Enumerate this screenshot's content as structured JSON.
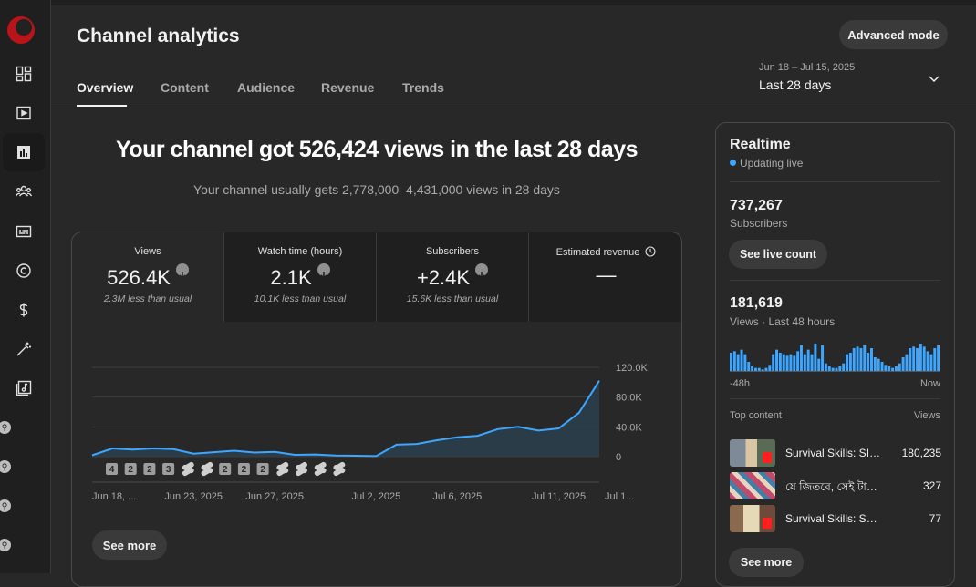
{
  "header": {
    "title": "Channel analytics",
    "advanced_mode": "Advanced mode",
    "tabs": [
      "Overview",
      "Content",
      "Audience",
      "Revenue",
      "Trends"
    ],
    "date_range": "Jun 18 – Jul 15, 2025",
    "date_label": "Last 28 days"
  },
  "sidebar": {
    "items": [
      "dashboard-icon",
      "content-icon",
      "analytics-icon",
      "community-icon",
      "subtitles-icon",
      "copyright-icon",
      "earn-icon",
      "customization-icon",
      "audio-library-icon"
    ]
  },
  "main": {
    "headline": "Your channel got 526,424 views in the last 28 days",
    "subline": "Your channel usually gets 2,778,000–4,431,000 views in 28 days",
    "see_more": "See more"
  },
  "metrics": [
    {
      "label": "Views",
      "value": "526.4K",
      "note": "2.3M less than usual",
      "trend": "down"
    },
    {
      "label": "Watch time (hours)",
      "value": "2.1K",
      "note": "10.1K less than usual",
      "trend": "down"
    },
    {
      "label": "Subscribers",
      "value": "+2.4K",
      "note": "15.6K less than usual",
      "trend": "down"
    },
    {
      "label": "Estimated revenue",
      "value": "—",
      "note": "",
      "trend": ""
    }
  ],
  "chart_data": {
    "type": "area",
    "y_ticks": [
      "120.0K",
      "80.0K",
      "40.0K",
      "0"
    ],
    "ylim": [
      0,
      120000
    ],
    "x_labels": [
      "Jun 18, ...",
      "Jun 23, 2025",
      "Jun 27, 2025",
      "Jul 2, 2025",
      "Jul 6, 2025",
      "Jul 11, 2025",
      "Jul 1..."
    ],
    "x_label_index": [
      0,
      5,
      9,
      14,
      18,
      23,
      26
    ],
    "values": [
      1800,
      11000,
      9500,
      11000,
      10000,
      4000,
      6000,
      8000,
      5500,
      6500,
      2500,
      3000,
      1500,
      1200,
      700,
      16000,
      17000,
      22000,
      26000,
      28000,
      37000,
      40000,
      35000,
      38000,
      59000,
      102000
    ],
    "markers": [
      "4",
      "2",
      "2",
      "3",
      "short",
      "short",
      "2",
      "2",
      "2",
      "short",
      "short",
      "short",
      "short"
    ],
    "color": "#3ea6ff"
  },
  "realtime": {
    "title": "Realtime",
    "live": "Updating live",
    "subscribers_value": "737,267",
    "subscribers_label": "Subscribers",
    "see_live_count": "See live count",
    "views_value": "181,619",
    "views_label": "Views · Last 48 hours",
    "axis_start": "-48h",
    "axis_end": "Now",
    "bars": [
      12,
      13,
      11,
      14,
      11,
      6,
      3,
      2,
      2,
      1,
      2,
      4,
      11,
      14,
      12,
      11,
      10,
      11,
      10,
      13,
      17,
      11,
      14,
      11,
      18,
      8,
      17,
      5,
      3,
      2,
      2,
      3,
      5,
      11,
      12,
      15,
      16,
      15,
      17,
      12,
      15,
      9,
      8,
      6,
      4,
      3,
      2,
      3,
      5,
      9,
      11,
      15,
      16,
      15,
      18,
      16,
      13,
      11,
      15,
      17
    ],
    "top_content_label": "Top content",
    "views_col": "Views",
    "top_content": [
      {
        "title": "Survival Skills: SIM...",
        "views": "180,235"
      },
      {
        "title": "যে জিতবে, সেই টাকা পা...",
        "views": "327"
      },
      {
        "title": "Survival Skills: SMART id...",
        "views": "77"
      }
    ],
    "see_more": "See more"
  }
}
